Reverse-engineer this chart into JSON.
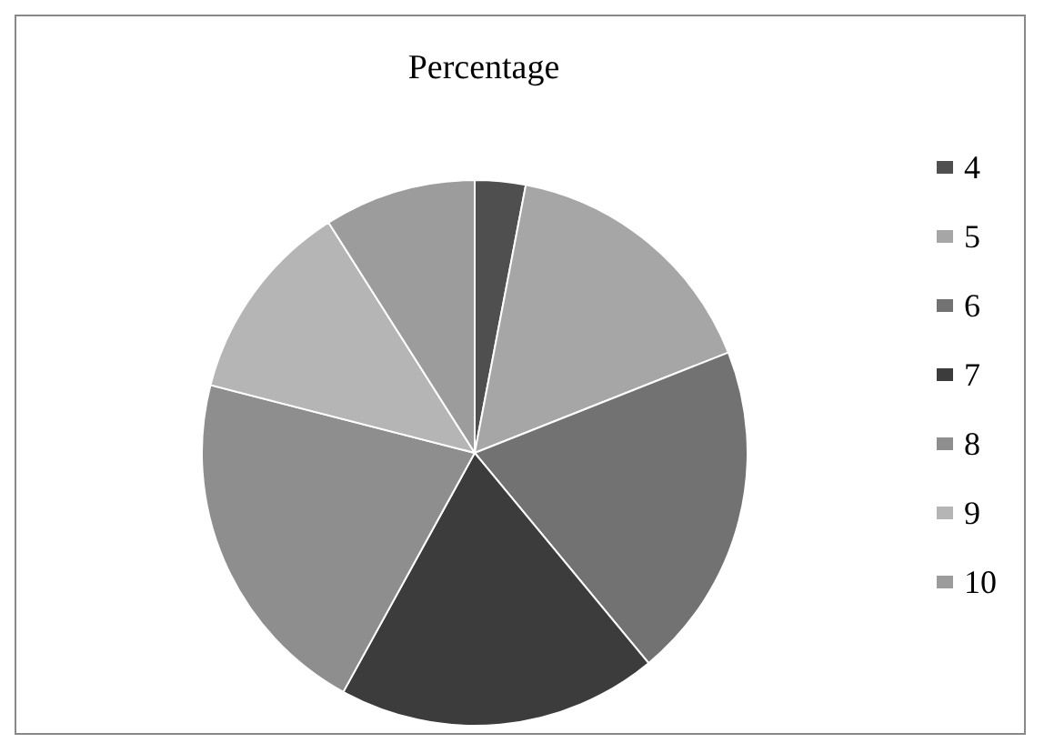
{
  "chart_data": {
    "type": "pie",
    "title": "Percentage",
    "categories": [
      "4",
      "5",
      "6",
      "7",
      "8",
      "9",
      "10"
    ],
    "values": [
      3,
      16,
      20,
      19,
      21,
      12,
      9
    ],
    "colors": [
      "#4f4f4f",
      "#a6a6a6",
      "#727272",
      "#3c3c3c",
      "#8e8e8e",
      "#b5b5b5",
      "#9c9c9c"
    ],
    "legend": "right"
  }
}
